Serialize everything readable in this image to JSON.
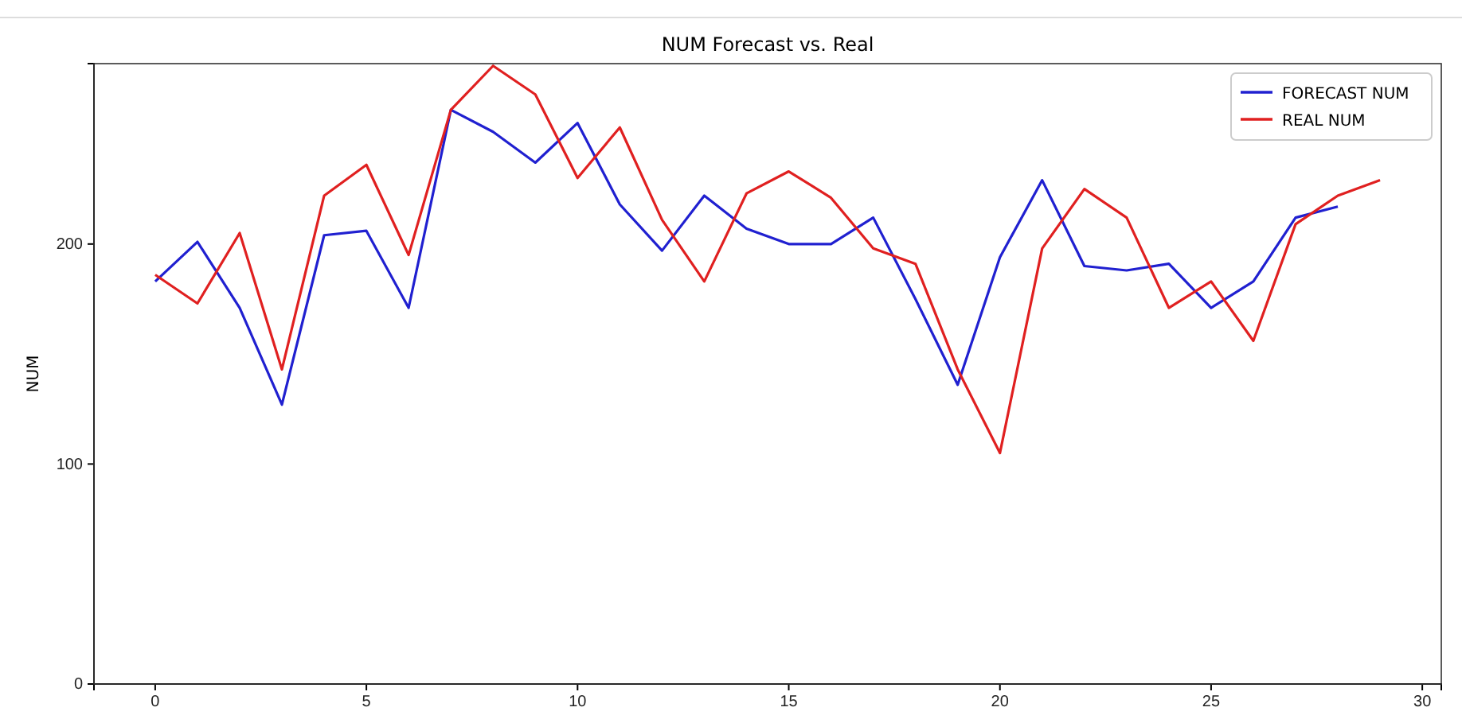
{
  "chart_data": {
    "type": "line",
    "title": "NUM Forecast vs. Real",
    "ylabel": "NUM",
    "x": [
      0,
      1,
      2,
      3,
      4,
      5,
      6,
      7,
      8,
      9,
      10,
      11,
      12,
      13,
      14,
      15,
      16,
      17,
      18,
      19,
      20,
      21,
      22,
      23,
      24,
      25,
      26,
      27,
      28,
      29
    ],
    "xlim": [
      -1.45,
      30.45
    ],
    "ylim": [
      0,
      282
    ],
    "xticks": [
      0,
      5,
      10,
      15,
      20,
      25,
      30
    ],
    "yticks": [
      0,
      100,
      200
    ],
    "series": [
      {
        "name": "FORECAST NUM",
        "color": "#2020d0",
        "x": [
          0,
          1,
          2,
          3,
          4,
          5,
          6,
          7,
          8,
          9,
          10,
          11,
          12,
          13,
          14,
          15,
          16,
          17,
          18,
          19,
          20,
          21,
          22,
          23,
          24,
          25,
          26,
          27,
          28
        ],
        "values": [
          183,
          201,
          171,
          127,
          204,
          206,
          171,
          261,
          251,
          237,
          255,
          218,
          197,
          222,
          207,
          200,
          200,
          212,
          175,
          136,
          194,
          229,
          190,
          188,
          191,
          171,
          183,
          212,
          217
        ]
      },
      {
        "name": "REAL NUM",
        "color": "#e02020",
        "values": [
          186,
          173,
          205,
          143,
          222,
          236,
          195,
          261,
          281,
          268,
          230,
          253,
          211,
          183,
          223,
          233,
          221,
          198,
          191,
          143,
          105,
          198,
          225,
          212,
          171,
          183,
          156,
          209,
          222,
          229
        ]
      }
    ],
    "legend": "top right",
    "grid": false,
    "line_style": "solid",
    "marker": "none"
  }
}
